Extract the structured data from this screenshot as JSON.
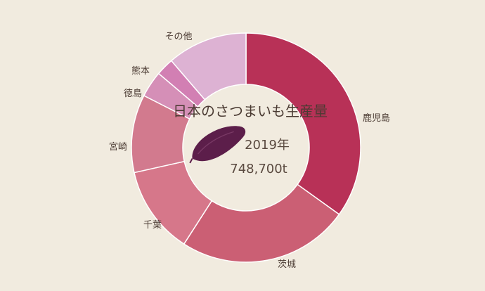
{
  "chart_data": {
    "type": "pie",
    "title": "日本のさつまいも生産量",
    "year": "2019年",
    "total": "748,700t",
    "categories": [
      "鹿児島",
      "茨城",
      "千葉",
      "宮崎",
      "徳島",
      "熊本",
      "その他"
    ],
    "values": [
      34.9,
      24.2,
      12.4,
      11.0,
      3.7,
      2.5,
      11.3
    ],
    "unit": "%",
    "colors": [
      "#b83157",
      "#cb5f74",
      "#d6778a",
      "#d27a8e",
      "#d58fb7",
      "#d27fb3",
      "#ddb2d3"
    ]
  }
}
